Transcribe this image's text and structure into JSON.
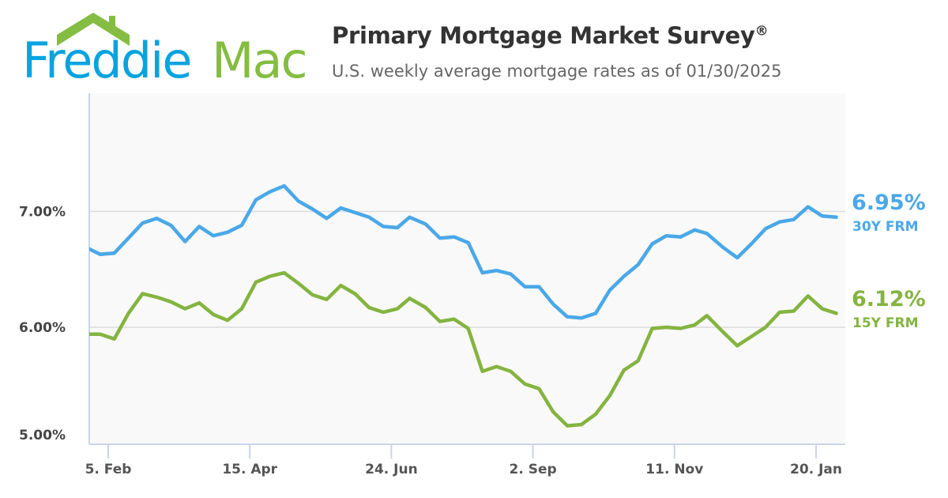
{
  "brand": {
    "logo_text_1": "Freddie",
    "logo_text_2": "Mac",
    "blue": "#0aa3e0",
    "green": "#84bd41"
  },
  "header": {
    "title": "Primary Mortgage Market Survey",
    "title_mark": "®",
    "subtitle": "U.S. weekly average mortgage rates as of 01/30/2025"
  },
  "chart_data": {
    "type": "line",
    "title": "Primary Mortgage Market Survey®",
    "subtitle": "U.S. weekly average mortgage rates as of 01/30/2025",
    "xlabel": "",
    "ylabel": "",
    "ylim": [
      4.99,
      8.02
    ],
    "y_ticks": [
      {
        "value": 5,
        "label": "5.00%"
      },
      {
        "value": 6,
        "label": "6.00%"
      },
      {
        "value": 7,
        "label": "7.00%"
      }
    ],
    "x_ticks": [
      {
        "date": "2024-02-05",
        "label": "5. Feb"
      },
      {
        "date": "2024-04-15",
        "label": "15. Apr"
      },
      {
        "date": "2024-06-24",
        "label": "24. Jun"
      },
      {
        "date": "2024-09-02",
        "label": "2. Sep"
      },
      {
        "date": "2024-11-11",
        "label": "11. Nov"
      },
      {
        "date": "2025-01-20",
        "label": "20. Jan"
      }
    ],
    "grid": true,
    "x": [
      "2024-01-25",
      "2024-02-01",
      "2024-02-08",
      "2024-02-15",
      "2024-02-22",
      "2024-02-29",
      "2024-03-07",
      "2024-03-14",
      "2024-03-21",
      "2024-03-28",
      "2024-04-04",
      "2024-04-11",
      "2024-04-18",
      "2024-04-25",
      "2024-05-02",
      "2024-05-09",
      "2024-05-16",
      "2024-05-23",
      "2024-05-30",
      "2024-06-06",
      "2024-06-13",
      "2024-06-20",
      "2024-06-27",
      "2024-07-03",
      "2024-07-11",
      "2024-07-18",
      "2024-07-25",
      "2024-08-01",
      "2024-08-08",
      "2024-08-15",
      "2024-08-22",
      "2024-08-29",
      "2024-09-05",
      "2024-09-12",
      "2024-09-19",
      "2024-09-26",
      "2024-10-03",
      "2024-10-10",
      "2024-10-17",
      "2024-10-24",
      "2024-10-31",
      "2024-11-07",
      "2024-11-14",
      "2024-11-21",
      "2024-11-27",
      "2024-12-05",
      "2024-12-12",
      "2024-12-19",
      "2024-12-26",
      "2025-01-02",
      "2025-01-09",
      "2025-01-16",
      "2025-01-23",
      "2025-01-30"
    ],
    "series": [
      {
        "name": "30Y FRM",
        "last_label": "6.95%",
        "color": "#4aa8e8",
        "values": [
          6.69,
          6.63,
          6.64,
          6.77,
          6.9,
          6.94,
          6.88,
          6.74,
          6.87,
          6.79,
          6.82,
          6.88,
          7.1,
          7.17,
          7.22,
          7.09,
          7.02,
          6.94,
          7.03,
          6.99,
          6.95,
          6.87,
          6.86,
          6.95,
          6.89,
          6.77,
          6.78,
          6.73,
          6.47,
          6.49,
          6.46,
          6.35,
          6.35,
          6.2,
          6.09,
          6.08,
          6.12,
          6.32,
          6.44,
          6.54,
          6.72,
          6.79,
          6.78,
          6.84,
          6.81,
          6.69,
          6.6,
          6.72,
          6.85,
          6.91,
          6.93,
          7.04,
          6.96,
          6.95
        ]
      },
      {
        "name": "15Y FRM",
        "last_label": "6.12%",
        "color": "#84b440",
        "values": [
          5.94,
          5.94,
          5.9,
          6.12,
          6.29,
          6.26,
          6.22,
          6.16,
          6.21,
          6.11,
          6.06,
          6.16,
          6.39,
          6.44,
          6.47,
          6.38,
          6.28,
          6.24,
          6.36,
          6.29,
          6.17,
          6.13,
          6.16,
          6.25,
          6.17,
          6.05,
          6.07,
          5.99,
          5.62,
          5.66,
          5.62,
          5.51,
          5.47,
          5.27,
          5.15,
          5.16,
          5.25,
          5.41,
          5.63,
          5.71,
          5.99,
          6.0,
          5.99,
          6.02,
          6.1,
          5.96,
          5.84,
          5.92,
          6.0,
          6.13,
          6.14,
          6.27,
          6.16,
          6.12
        ]
      }
    ]
  }
}
